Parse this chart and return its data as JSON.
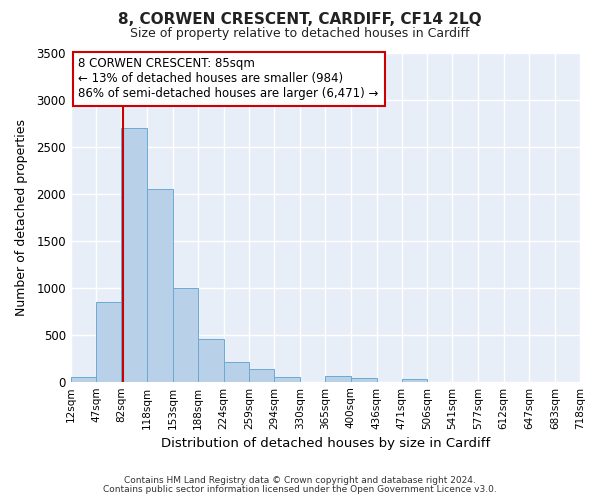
{
  "title": "8, CORWEN CRESCENT, CARDIFF, CF14 2LQ",
  "subtitle": "Size of property relative to detached houses in Cardiff",
  "xlabel": "Distribution of detached houses by size in Cardiff",
  "ylabel": "Number of detached properties",
  "footnote1": "Contains HM Land Registry data © Crown copyright and database right 2024.",
  "footnote2": "Contains public sector information licensed under the Open Government Licence v3.0.",
  "bar_edges": [
    12,
    47,
    82,
    118,
    153,
    188,
    224,
    259,
    294,
    330,
    365,
    400,
    436,
    471,
    506,
    541,
    577,
    612,
    647,
    683,
    718
  ],
  "bar_heights": [
    55,
    850,
    2700,
    2050,
    1000,
    450,
    205,
    135,
    55,
    0,
    65,
    40,
    0,
    30,
    0,
    0,
    0,
    0,
    0,
    0
  ],
  "bar_color": "#b8d0e8",
  "bar_edge_color": "#6aaad4",
  "vline_x": 85,
  "vline_color": "#cc0000",
  "ylim": [
    0,
    3500
  ],
  "yticks": [
    0,
    500,
    1000,
    1500,
    2000,
    2500,
    3000,
    3500
  ],
  "annotation_line1": "8 CORWEN CRESCENT: 85sqm",
  "annotation_line2": "← 13% of detached houses are smaller (984)",
  "annotation_line3": "86% of semi-detached houses are larger (6,471) →",
  "annotation_box_edgecolor": "#cc0000",
  "annotation_box_facecolor": "#ffffff",
  "background_color": "#ffffff",
  "plot_background_color": "#e8eef8",
  "grid_color": "#ffffff",
  "tick_labels": [
    "12sqm",
    "47sqm",
    "82sqm",
    "118sqm",
    "153sqm",
    "188sqm",
    "224sqm",
    "259sqm",
    "294sqm",
    "330sqm",
    "365sqm",
    "400sqm",
    "436sqm",
    "471sqm",
    "506sqm",
    "541sqm",
    "577sqm",
    "612sqm",
    "647sqm",
    "683sqm",
    "718sqm"
  ]
}
